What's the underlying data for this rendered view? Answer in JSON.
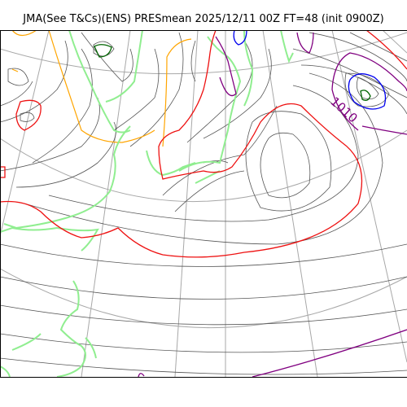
{
  "header": {
    "title": "JMA(See T&Cs)(ENS) PRESmean 2025/12/11 00Z FT=48 (init 0900Z)"
  },
  "map": {
    "isobar_label": "1010",
    "colors": {
      "coastline": "#90ee90",
      "isobar": "#555555",
      "isobar_1010": "#ee1111",
      "isobar_1000": "#800080",
      "isobar_990": "#0000ee",
      "isobar_980": "#006400",
      "highlight_orange": "#ffa500",
      "graticule": "#a8a8a8"
    }
  }
}
